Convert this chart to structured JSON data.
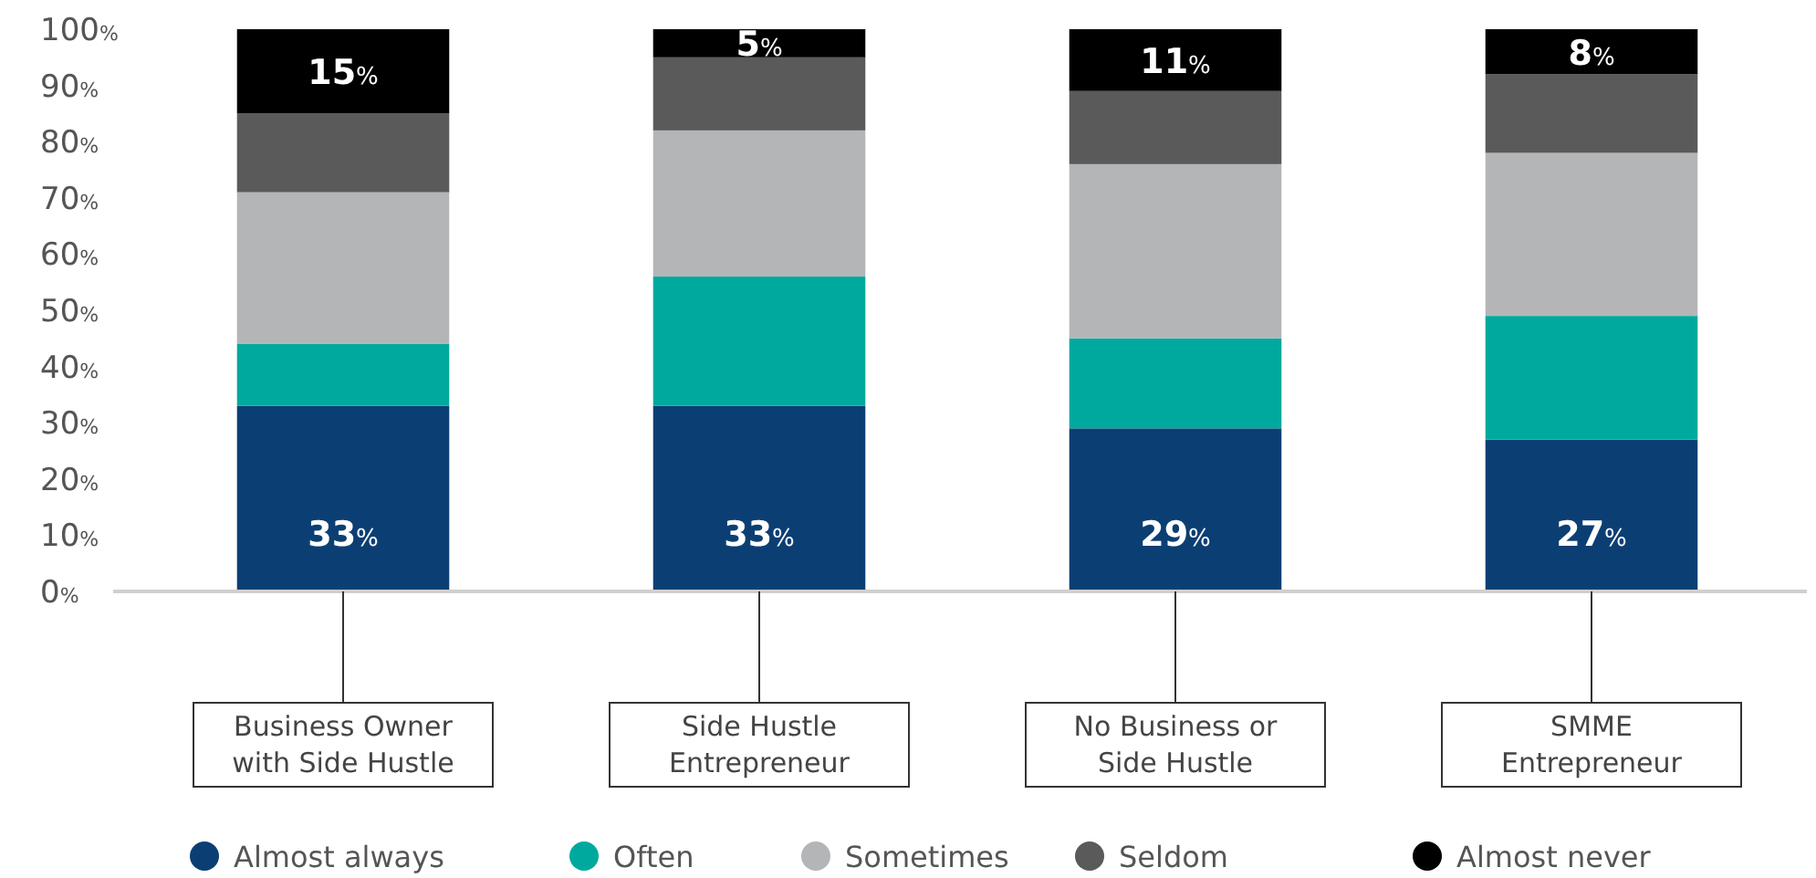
{
  "chart_data": {
    "type": "bar",
    "stacked": true,
    "categories": [
      "Business Owner with Side Hustle",
      "Side Hustle Entrepreneur",
      "No Business or Side Hustle",
      "SMME Entrepreneur"
    ],
    "series": [
      {
        "name": "Almost always",
        "color": "#0b3f73",
        "values": [
          33,
          33,
          29,
          27
        ],
        "value_labels": [
          "33%",
          "33%",
          "29%",
          "27%"
        ]
      },
      {
        "name": "Often",
        "color": "#00a99d",
        "values": [
          11,
          23,
          16,
          22
        ]
      },
      {
        "name": "Sometimes",
        "color": "#b4b5b7",
        "values": [
          27,
          26,
          31,
          29
        ]
      },
      {
        "name": "Seldom",
        "color": "#5a5a5a",
        "values": [
          14,
          13,
          13,
          14
        ]
      },
      {
        "name": "Almost never",
        "color": "#000000",
        "values": [
          15,
          5,
          11,
          8
        ],
        "value_labels": [
          "15%",
          "5%",
          "11%",
          "8%"
        ]
      }
    ],
    "ylim": [
      0,
      100
    ],
    "yticks": [
      {
        "value": 0,
        "label": "0%"
      },
      {
        "value": 10,
        "label": "10%"
      },
      {
        "value": 20,
        "label": "20%"
      },
      {
        "value": 30,
        "label": "30%"
      },
      {
        "value": 40,
        "label": "40%"
      },
      {
        "value": 50,
        "label": "50%"
      },
      {
        "value": 60,
        "label": "60%"
      },
      {
        "value": 70,
        "label": "70%"
      },
      {
        "value": 80,
        "label": "80%"
      },
      {
        "value": 90,
        "label": "90%"
      },
      {
        "value": 100,
        "label": "100%"
      }
    ],
    "grid": false,
    "legend": "bottom"
  }
}
